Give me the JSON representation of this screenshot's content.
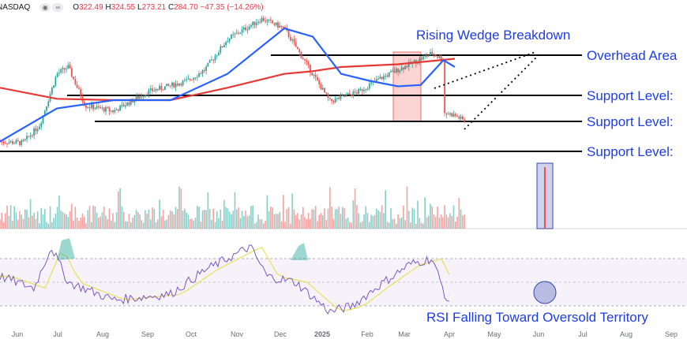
{
  "header": {
    "symbol": "NASDAQ",
    "buttons": [
      "eye-icon",
      "settings-icon"
    ],
    "open_label": "O",
    "open": "322.49",
    "high_label": "H",
    "high": "324.55",
    "low_label": "L",
    "low": "273.21",
    "close_label": "C",
    "close": "284.70",
    "change": "−47.35 (−14.26%)"
  },
  "annotations": {
    "wedge": "Rising Wedge Breakdown",
    "overhead": "Overhead Area",
    "support1": "Support Level:",
    "support2": "Support Level:",
    "support3": "Support Level:",
    "rsi": "RSI Falling Toward Oversold Territory"
  },
  "colors": {
    "up": "#26a69a",
    "down": "#ef5350",
    "ma_short": "#2962ff",
    "ma_long": "#e53935",
    "annotation": "#1e3de4",
    "rsi": "#7e57c2",
    "rsi_ma": "#e8e05a"
  },
  "chart_data": [
    {
      "type": "candlestick",
      "x_ticks": [
        "Jun",
        "Jul",
        "Aug",
        "Sep",
        "Oct",
        "Nov",
        "Dec",
        "2025",
        "Feb",
        "Mar",
        "Apr",
        "May",
        "Jun",
        "Jul",
        "Aug",
        "Sep"
      ],
      "ylim": [
        0,
        1
      ],
      "series": [
        {
          "name": "price",
          "x": [
            0,
            0.04,
            0.07,
            0.1,
            0.12,
            0.15,
            0.2,
            0.26,
            0.33,
            0.36,
            0.4,
            0.46,
            0.5,
            0.58,
            0.63,
            0.67,
            0.72,
            0.76,
            0.78,
            0.76,
            0.73,
            0.75,
            0.8,
            0.82
          ],
          "y": [
            0.06,
            0.05,
            0.18,
            0.55,
            0.6,
            0.32,
            0.28,
            0.42,
            0.5,
            0.58,
            0.8,
            0.95,
            0.88,
            0.35,
            0.42,
            0.52,
            0.62,
            0.7,
            0.65,
            0.52,
            0.38,
            0.3,
            0.25,
            0.2
          ]
        },
        {
          "name": "moving-average-short",
          "x": [
            0,
            0.1,
            0.2,
            0.3,
            0.4,
            0.5,
            0.55,
            0.6,
            0.65,
            0.7,
            0.74,
            0.78,
            0.8
          ],
          "y": [
            0.06,
            0.3,
            0.36,
            0.36,
            0.55,
            0.88,
            0.82,
            0.55,
            0.5,
            0.46,
            0.47,
            0.65,
            0.6
          ]
        },
        {
          "name": "moving-average-long",
          "x": [
            0,
            0.1,
            0.2,
            0.3,
            0.4,
            0.5,
            0.55,
            0.6,
            0.7,
            0.8
          ],
          "y": [
            0.45,
            0.37,
            0.36,
            0.36,
            0.45,
            0.55,
            0.57,
            0.6,
            0.62,
            0.66
          ]
        }
      ],
      "levels": [
        {
          "name": "overhead-area",
          "y": 0.72
        },
        {
          "name": "support-1",
          "y": 0.54
        },
        {
          "name": "support-2",
          "y": 0.33
        },
        {
          "name": "support-3",
          "y": 0.03
        }
      ]
    },
    {
      "type": "bar",
      "name": "volume",
      "x": [
        0,
        1
      ],
      "note_values": "relative volume, spike at last bar",
      "values": [
        0.2,
        0.9
      ]
    },
    {
      "type": "line",
      "name": "RSI",
      "x": [
        0,
        0.06,
        0.09,
        0.12,
        0.2,
        0.3,
        0.36,
        0.44,
        0.47,
        0.52,
        0.58,
        0.62,
        0.66,
        0.72,
        0.76,
        0.79
      ],
      "y": [
        55,
        45,
        80,
        50,
        35,
        40,
        60,
        80,
        55,
        50,
        25,
        30,
        45,
        65,
        70,
        30
      ],
      "ylim": [
        20,
        80
      ],
      "bands": [
        30,
        70
      ]
    }
  ]
}
